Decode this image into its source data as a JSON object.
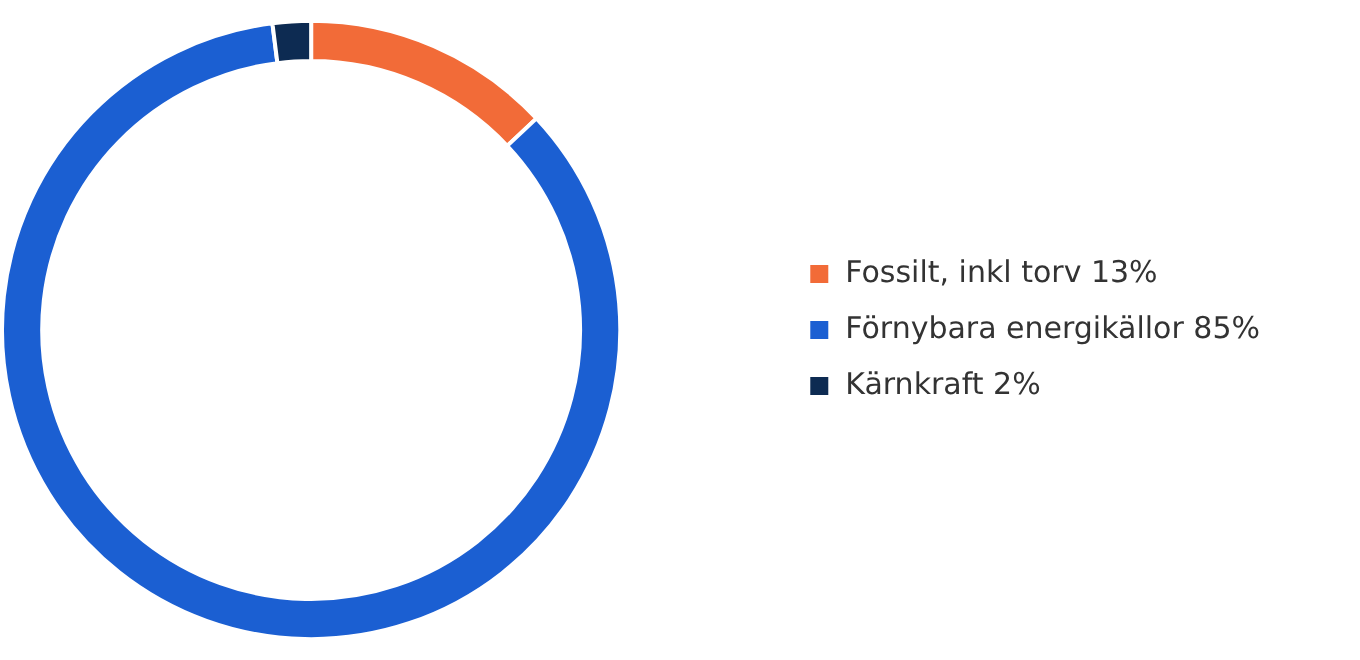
{
  "chart_data": {
    "type": "donut",
    "categories": [
      "Fossilt, inkl torv 13%",
      "Förnybara energikällor 85%",
      "Kärnkraft 2%"
    ],
    "values": [
      13,
      85,
      2
    ],
    "colors": [
      "#f26b38",
      "#1b5fd2",
      "#0d2b52"
    ],
    "legend": "right"
  }
}
